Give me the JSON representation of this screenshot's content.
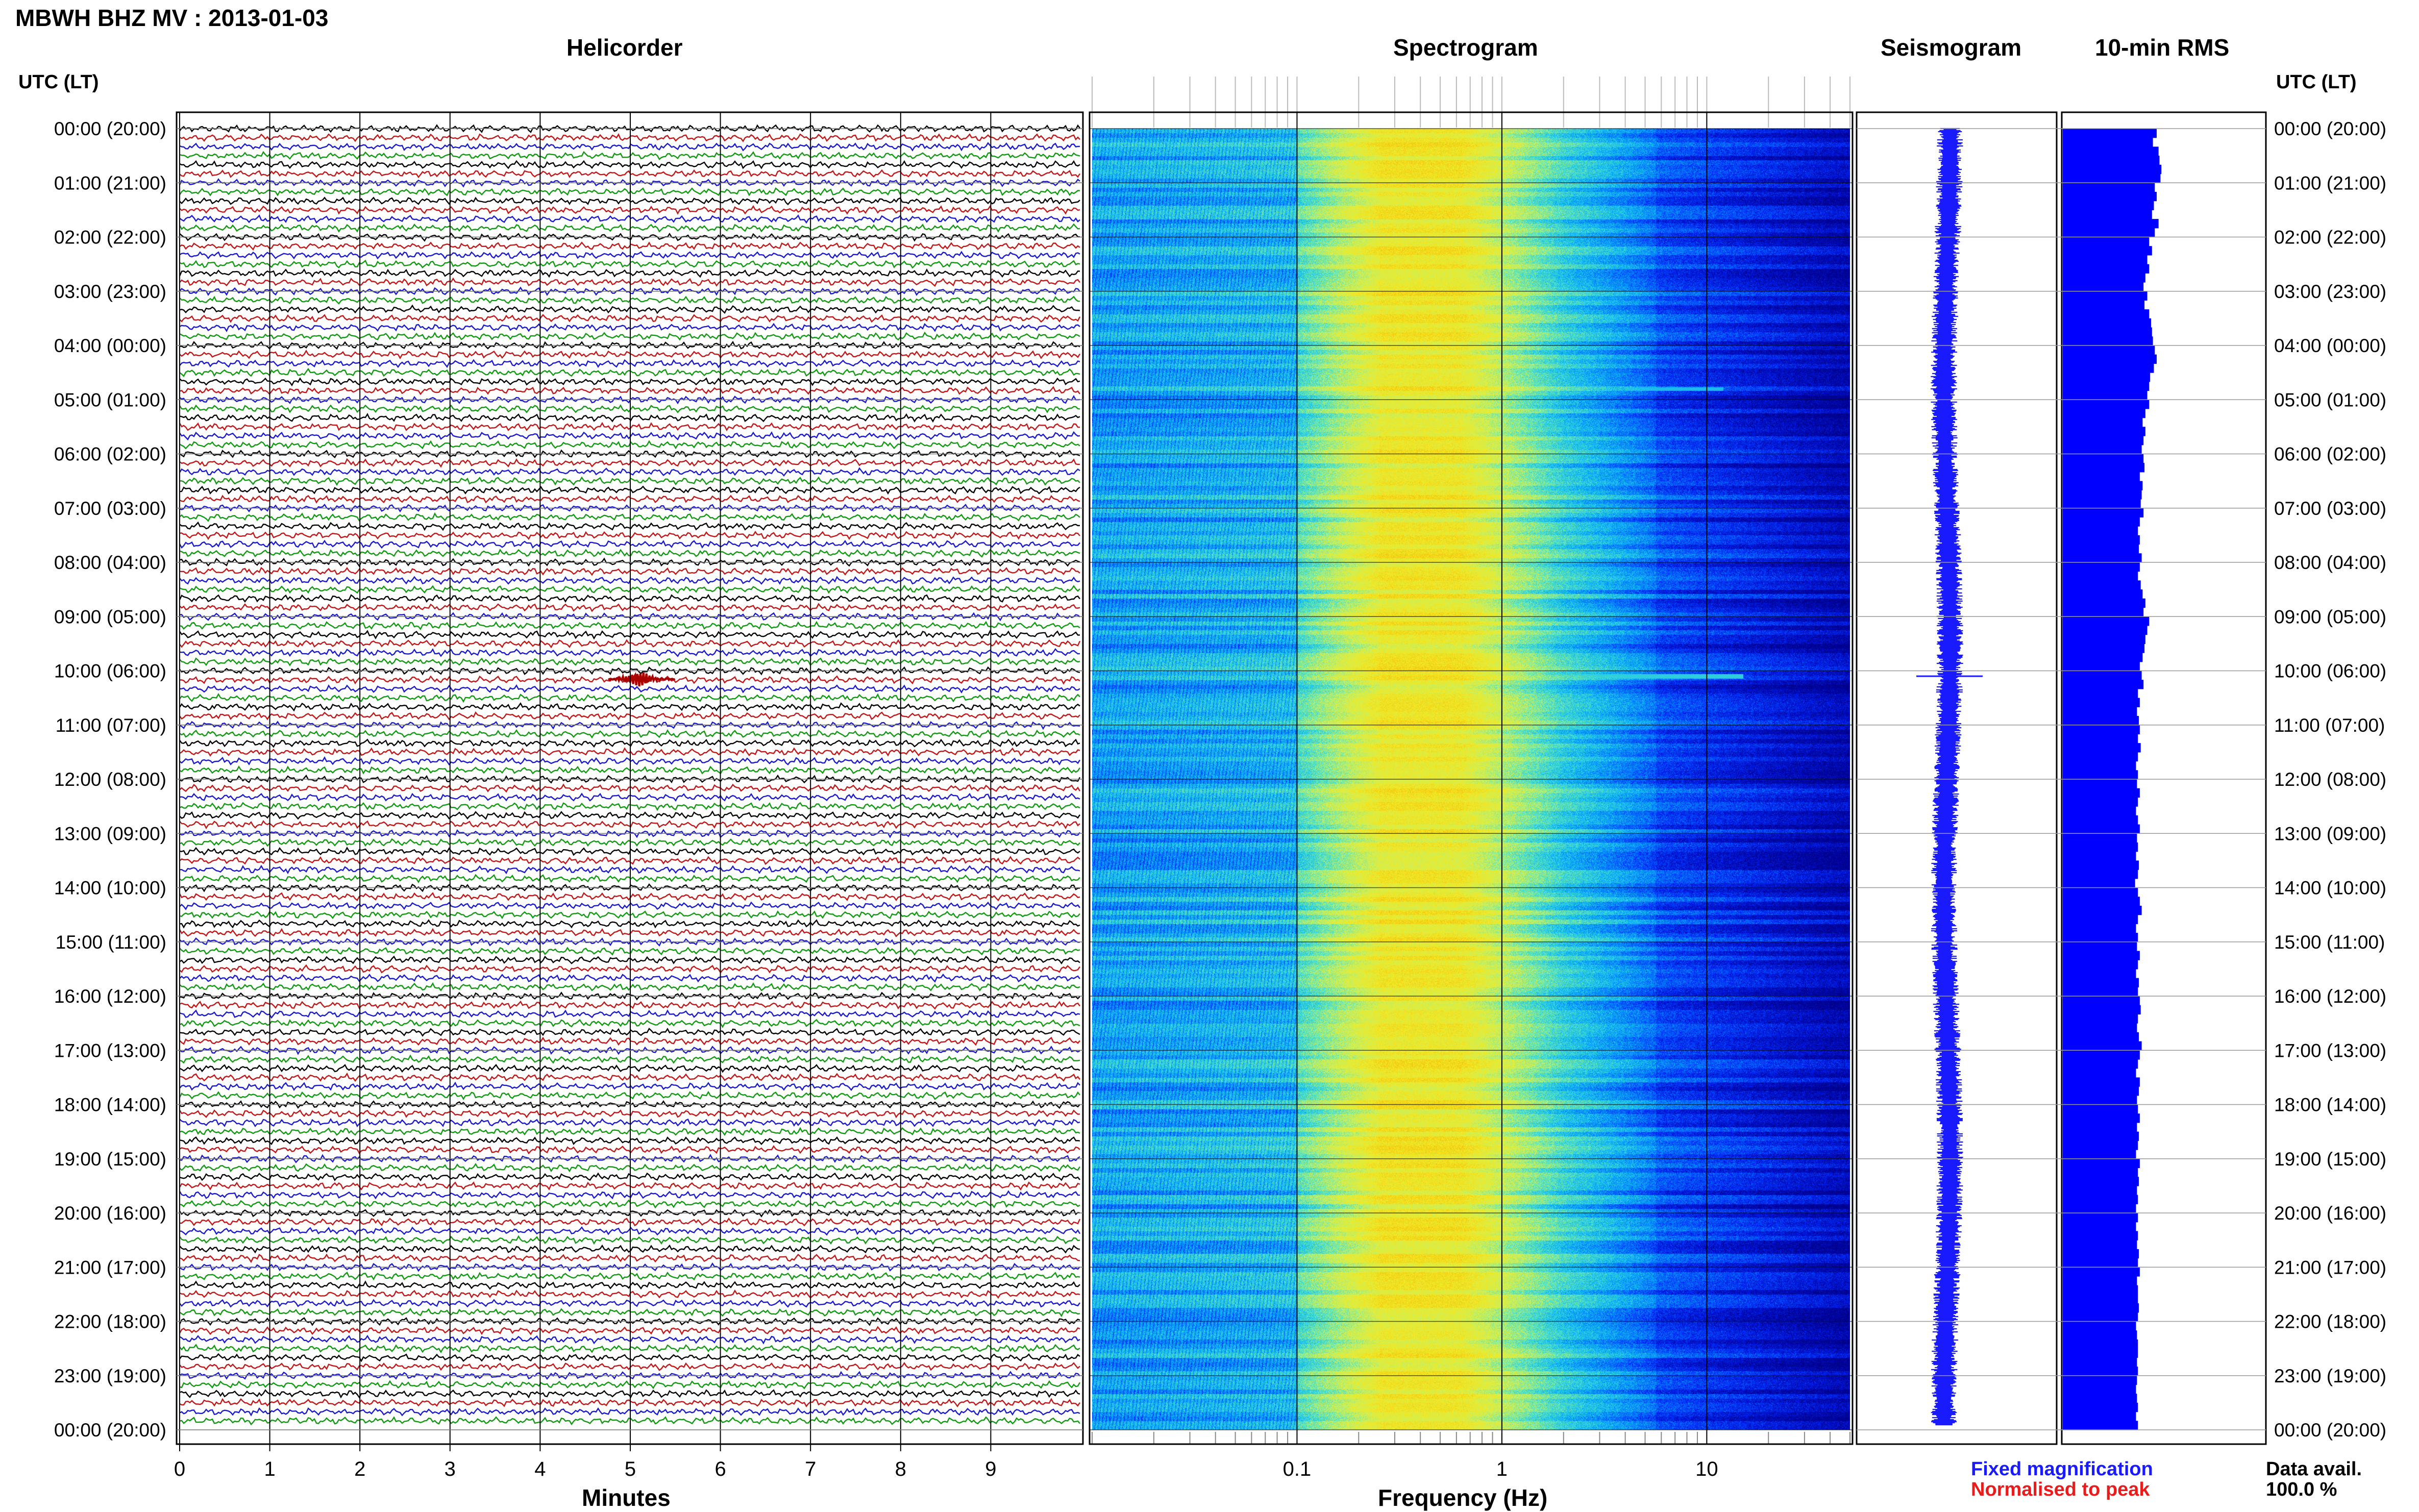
{
  "page": {
    "title": "MBWH BHZ MV : 2013-01-03",
    "panel_titles": {
      "helicorder": "Helicorder",
      "spectrogram": "Spectrogram",
      "seismogram": "Seismogram",
      "rms": "10-min RMS"
    },
    "axis_header_left": "UTC (LT)",
    "axis_header_right": "UTC (LT)",
    "x_labels": {
      "helicorder": "Minutes",
      "spectrogram": "Frequency (Hz)"
    },
    "legend": {
      "fixed": "Fixed magnification",
      "normalised": "Normalised to peak"
    },
    "data_avail": {
      "label": "Data avail.",
      "value": "100.0 %"
    }
  },
  "chart_data": [
    {
      "type": "line",
      "name": "helicorder",
      "time_labels": [
        "00:00 (20:00)",
        "01:00 (21:00)",
        "02:00 (22:00)",
        "03:00 (23:00)",
        "04:00 (00:00)",
        "05:00 (01:00)",
        "06:00 (02:00)",
        "07:00 (03:00)",
        "08:00 (04:00)",
        "09:00 (05:00)",
        "10:00 (06:00)",
        "11:00 (07:00)",
        "12:00 (08:00)",
        "13:00 (09:00)",
        "14:00 (10:00)",
        "15:00 (11:00)",
        "16:00 (12:00)",
        "17:00 (13:00)",
        "18:00 (14:00)",
        "19:00 (15:00)",
        "20:00 (16:00)",
        "21:00 (17:00)",
        "22:00 (18:00)",
        "23:00 (19:00)",
        "00:00 (20:00)"
      ],
      "x_ticks": [
        0,
        1,
        2,
        3,
        4,
        5,
        6,
        7,
        8,
        9
      ],
      "xlim": [
        0,
        10
      ],
      "xlabel": "Minutes",
      "trace_colors": [
        "#000000",
        "#c01818",
        "#1a1acc",
        "#119911"
      ],
      "traces_per_hour": 6,
      "event": {
        "hour": 10,
        "minute": 5.1,
        "color": "#aa0000"
      }
    },
    {
      "type": "heatmap",
      "name": "spectrogram",
      "x_scale": "log",
      "xlim": [
        0.01,
        50
      ],
      "x_ticks": [
        0.1,
        1,
        10
      ],
      "x_tick_labels": [
        "0.1",
        "1",
        "10"
      ],
      "xlabel": "Frequency (Hz)",
      "colormap": [
        "#00008b",
        "#0022ff",
        "#00a0ff",
        "#40e0d0",
        "#c8f060",
        "#f4ea20",
        "#f2c010"
      ],
      "peak_band_hz": [
        0.15,
        0.6
      ],
      "line_events_hz": [
        [
          3,
          15,
          5
        ],
        [
          3,
          20,
          10
        ]
      ]
    },
    {
      "type": "line",
      "name": "seismogram",
      "color": "#1a1aff",
      "spike_hour": 10.1
    },
    {
      "type": "bar",
      "name": "10-min RMS",
      "orientation": "horizontal",
      "color": "#0000ff",
      "bin_minutes": 10,
      "values": [
        1.0,
        0.96,
        1.02,
        1.03,
        1.05,
        1.04,
        0.98,
        1.0,
        0.97,
        0.95,
        1.02,
        0.98,
        0.92,
        0.95,
        0.9,
        0.92,
        0.88,
        0.86,
        0.9,
        0.87,
        0.92,
        0.94,
        0.95,
        0.96,
        0.98,
        1.0,
        0.97,
        0.93,
        0.92,
        0.9,
        0.92,
        0.88,
        0.85,
        0.88,
        0.86,
        0.84,
        0.86,
        0.87,
        0.82,
        0.85,
        0.84,
        0.83,
        0.86,
        0.82,
        0.8,
        0.82,
        0.81,
        0.84,
        0.82,
        0.8,
        0.83,
        0.85,
        0.88,
        0.86,
        0.92,
        0.9,
        0.88,
        0.87,
        0.85,
        0.82,
        0.84,
        0.86,
        0.8,
        0.82,
        0.79,
        0.81,
        0.82,
        0.8,
        0.83,
        0.8,
        0.78,
        0.8,
        0.79,
        0.82,
        0.8,
        0.78,
        0.8,
        0.82,
        0.79,
        0.8,
        0.78,
        0.81,
        0.8,
        0.77,
        0.8,
        0.82,
        0.84,
        0.8,
        0.78,
        0.8,
        0.79,
        0.82,
        0.8,
        0.78,
        0.81,
        0.8,
        0.82,
        0.83,
        0.8,
        0.79,
        0.81,
        0.84,
        0.82,
        0.8,
        0.78,
        0.82,
        0.81,
        0.79,
        0.8,
        0.82,
        0.79,
        0.81,
        0.8,
        0.78,
        0.82,
        0.8,
        0.81,
        0.79,
        0.8,
        0.78,
        0.8,
        0.78,
        0.8,
        0.79,
        0.81,
        0.8,
        0.82,
        0.79,
        0.8,
        0.8,
        0.81,
        0.8,
        0.78,
        0.79,
        0.8,
        0.8,
        0.79,
        0.8,
        0.79,
        0.78,
        0.79,
        0.8,
        0.78,
        0.8
      ]
    }
  ]
}
